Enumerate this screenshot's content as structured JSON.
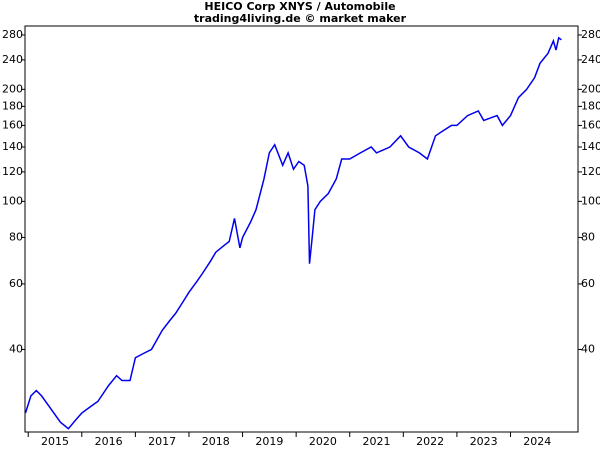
{
  "chart_data": {
    "type": "line",
    "title": "HEICO Corp XNYS / Automobile",
    "subtitle": "trading4living.de © market maker",
    "log_scale": true,
    "grid": false,
    "x": [
      2014.95,
      2015.05,
      2015.15,
      2015.25,
      2015.4,
      2015.6,
      2015.75,
      2015.9,
      2016.0,
      2016.15,
      2016.3,
      2016.5,
      2016.65,
      2016.75,
      2016.9,
      2017.0,
      2017.15,
      2017.3,
      2017.5,
      2017.65,
      2017.75,
      2017.9,
      2018.0,
      2018.15,
      2018.25,
      2018.4,
      2018.5,
      2018.65,
      2018.75,
      2018.85,
      2018.95,
      2019.0,
      2019.15,
      2019.25,
      2019.4,
      2019.5,
      2019.6,
      2019.75,
      2019.85,
      2019.95,
      2020.05,
      2020.15,
      2020.22,
      2020.25,
      2020.3,
      2020.35,
      2020.45,
      2020.6,
      2020.75,
      2020.85,
      2021.0,
      2021.2,
      2021.4,
      2021.5,
      2021.75,
      2021.95,
      2022.1,
      2022.3,
      2022.45,
      2022.6,
      2022.75,
      2022.9,
      2023.0,
      2023.2,
      2023.4,
      2023.5,
      2023.75,
      2023.85,
      2024.0,
      2024.15,
      2024.3,
      2024.45,
      2024.55,
      2024.7,
      2024.8,
      2024.85,
      2024.9,
      2024.95
    ],
    "series": [
      {
        "name": "HEICO",
        "color": "#0000ee",
        "values": [
          27,
          30,
          31,
          30,
          28,
          25.5,
          24.5,
          26,
          27,
          28,
          29,
          32,
          34,
          33,
          33,
          38,
          39,
          40,
          45,
          48,
          50,
          54,
          57,
          61,
          64,
          69,
          73,
          76,
          78,
          90,
          75,
          80,
          88,
          95,
          115,
          135,
          142,
          125,
          135,
          122,
          128,
          125,
          110,
          68,
          80,
          95,
          100,
          105,
          115,
          130,
          130,
          135,
          140,
          135,
          140,
          150,
          140,
          135,
          130,
          150,
          155,
          160,
          160,
          170,
          175,
          165,
          170,
          160,
          170,
          190,
          200,
          215,
          235,
          250,
          270,
          255,
          275,
          272
        ]
      }
    ],
    "xlim": [
      2014.94,
      2025.26
    ],
    "xticks": [
      2015,
      2016,
      2017,
      2018,
      2019,
      2020,
      2021,
      2022,
      2023,
      2024
    ],
    "ylim": [
      24,
      296
    ],
    "yticks": [
      40,
      60,
      80,
      100,
      120,
      140,
      160,
      180,
      200,
      240,
      280
    ]
  }
}
